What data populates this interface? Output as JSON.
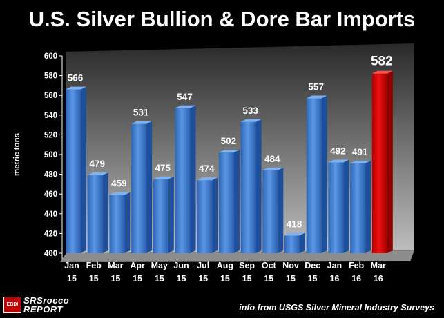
{
  "title": "U.S. Silver Bullion & Dore Bar Imports",
  "source_note": "info from USGS Silver Mineral Industry Surveys",
  "logo": {
    "box_text": "EBDI",
    "line1": "SRSrocco",
    "line2": "REPORT"
  },
  "colors": {
    "bar": "#3f7fd4",
    "bar_dark": "#1d4f9a",
    "highlight": "#e00000",
    "highlight_dark": "#8a0000",
    "background": "#000000"
  },
  "chart_data": {
    "type": "bar",
    "title": "U.S. Silver Bullion & Dore Bar Imports",
    "xlabel": "",
    "ylabel": "metric tons",
    "ylim": [
      400,
      600
    ],
    "yticks": [
      400,
      420,
      440,
      460,
      480,
      500,
      520,
      540,
      560,
      580,
      600
    ],
    "grid": false,
    "categories": [
      [
        "Jan",
        "15"
      ],
      [
        "Feb",
        "15"
      ],
      [
        "Mar",
        "15"
      ],
      [
        "Apr",
        "15"
      ],
      [
        "May",
        "15"
      ],
      [
        "Jun",
        "15"
      ],
      [
        "Jul",
        "15"
      ],
      [
        "Aug",
        "15"
      ],
      [
        "Sep",
        "15"
      ],
      [
        "Oct",
        "15"
      ],
      [
        "Nov",
        "15"
      ],
      [
        "Dec",
        "15"
      ],
      [
        "Jan",
        "16"
      ],
      [
        "Feb",
        "16"
      ],
      [
        "Mar",
        "16"
      ]
    ],
    "values": [
      566,
      479,
      459,
      531,
      475,
      547,
      474,
      502,
      533,
      484,
      418,
      557,
      492,
      491,
      582
    ],
    "highlight_index": 14
  }
}
